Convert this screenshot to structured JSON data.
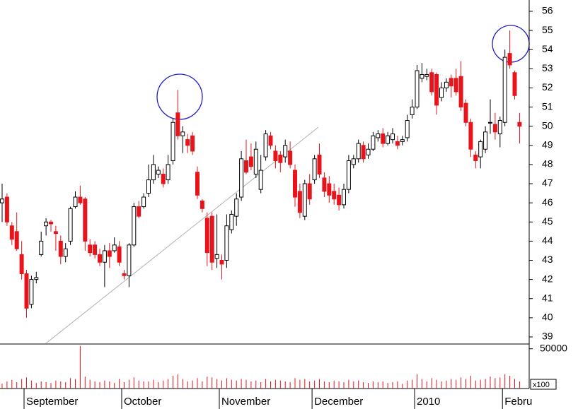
{
  "chart_data": {
    "type": "candlestick",
    "categories": [
      null,
      null,
      null,
      null,
      null,
      "September",
      null,
      null,
      null,
      null,
      null,
      null,
      null,
      null,
      null,
      null,
      null,
      null,
      null,
      null,
      null,
      null,
      null,
      null,
      null,
      "October",
      null,
      null,
      null,
      null,
      null,
      null,
      null,
      null,
      null,
      null,
      null,
      null,
      null,
      null,
      null,
      null,
      null,
      null,
      null,
      "November",
      null,
      null,
      null,
      null,
      null,
      null,
      null,
      null,
      null,
      null,
      null,
      null,
      null,
      null,
      null,
      null,
      null,
      null,
      "December",
      null,
      null,
      null,
      null,
      null,
      null,
      null,
      null,
      null,
      null,
      null,
      null,
      null,
      null,
      null,
      null,
      null,
      null,
      null,
      null,
      "2010",
      null,
      null,
      null,
      null,
      null,
      null,
      null,
      null,
      null,
      null,
      null,
      null,
      null,
      null,
      null,
      null,
      null,
      "Febru",
      null,
      null,
      null
    ],
    "open": [
      46,
      46.3,
      44.8,
      44.5,
      43.3,
      42.3,
      40.7,
      42,
      43.3,
      44.8,
      45,
      44.5,
      44,
      43.2,
      44,
      45.8,
      46.3,
      46.2,
      43.8,
      43.8,
      43.3,
      42.9,
      43.5,
      43.5,
      43.7,
      42.3,
      42.2,
      43.8,
      45.8,
      45.8,
      46.5,
      47.2,
      47.5,
      47.5,
      47.2,
      48.2,
      50.7,
      49.5,
      49.3,
      49.5,
      47.6,
      46.1,
      45.2,
      45.3,
      43.1,
      43,
      43,
      44.6,
      45.3,
      46.3,
      48.2,
      48.4,
      47.5,
      46.7,
      48.4,
      49.5,
      48.7,
      48.5,
      48.4,
      48.7,
      47.7,
      46.6,
      45.3,
      47,
      47.2,
      48.5,
      47.3,
      47,
      46.6,
      46.4,
      45.9,
      46.7,
      48,
      48.3,
      49,
      48.5,
      48.8,
      49.4,
      49.6,
      49.1,
      49.3,
      49.2,
      49.2,
      49.4,
      50.6,
      51,
      52.5,
      52.6,
      52.8,
      52.7,
      51.5,
      52,
      52.5,
      52.5,
      52.6,
      51.2,
      50.2,
      48.5,
      48.4,
      48.8,
      50.2,
      50.1,
      49.6,
      50.2,
      53.8,
      52.8,
      50.2
    ],
    "high": [
      47,
      46.5,
      45,
      45.5,
      44,
      42.5,
      42.2,
      42.4,
      44.5,
      45.2,
      45.1,
      44.8,
      44.3,
      43.9,
      45.8,
      46.6,
      46.9,
      46.3,
      44.1,
      44,
      43.6,
      43.8,
      43.9,
      44.2,
      44,
      42.5,
      43.9,
      46,
      46.1,
      46.5,
      48,
      48.5,
      47.9,
      47.8,
      48.5,
      50.4,
      51.9,
      50,
      49.6,
      49.7,
      47.9,
      46.2,
      45.5,
      45.5,
      45.4,
      43.3,
      45.4,
      45.6,
      46.5,
      48.7,
      49.3,
      49.1,
      49.2,
      48.5,
      49.8,
      49.7,
      49,
      48.7,
      49.3,
      49.2,
      48,
      47,
      47.2,
      47.5,
      48.5,
      49.1,
      47.6,
      47.4,
      47,
      46.8,
      47,
      48.5,
      48.5,
      49.3,
      49.2,
      49.1,
      49.7,
      49.8,
      49.9,
      49.7,
      49.9,
      49.5,
      49.5,
      50.6,
      51.4,
      53.2,
      53.3,
      53,
      53,
      52.8,
      52.3,
      52.5,
      52.7,
      53,
      53.4,
      51.4,
      50.4,
      48.7,
      49.3,
      50,
      51.4,
      50.7,
      50.5,
      54,
      55,
      52.9,
      50.7
    ],
    "low": [
      45,
      44.8,
      43.8,
      43.5,
      42,
      40,
      40.5,
      41.8,
      43.2,
      44.3,
      44.5,
      43.5,
      42.8,
      42.9,
      43.8,
      45.7,
      45.9,
      43.5,
      43.2,
      43.1,
      42.7,
      41.6,
      42.6,
      43.4,
      42.7,
      42,
      41.6,
      43.7,
      45.2,
      45.7,
      46.3,
      47,
      47.3,
      46.8,
      47,
      48,
      49.3,
      48.6,
      48.6,
      48.5,
      46.2,
      45.5,
      42.7,
      42.5,
      42.6,
      42,
      42.6,
      44.4,
      44.8,
      46.1,
      47.5,
      47.7,
      47.3,
      46.5,
      48.2,
      48.8,
      47.8,
      47.6,
      48.1,
      47.8,
      45.8,
      45.2,
      45.1,
      45.9,
      47,
      47.3,
      46.3,
      46,
      45.9,
      45.6,
      45.7,
      46.5,
      47.8,
      48.1,
      48.1,
      48.3,
      48.7,
      49.2,
      48.9,
      49,
      49.1,
      48.8,
      49,
      49.2,
      50.4,
      50.9,
      52.3,
      52.4,
      51.6,
      50.6,
      51.3,
      51.8,
      51.5,
      51.6,
      50.8,
      50,
      48.4,
      47.8,
      47.8,
      48.6,
      49.6,
      49.3,
      48.9,
      50,
      53,
      51.4,
      49.1
    ],
    "close": [
      46.2,
      45,
      44.1,
      43.6,
      42.3,
      40.5,
      42,
      42.1,
      44,
      45,
      44.9,
      44.4,
      43.2,
      43.6,
      45.7,
      46.3,
      46,
      44,
      43.4,
      43.3,
      42.9,
      43.5,
      43.2,
      43.8,
      42.9,
      42.2,
      43.8,
      45.8,
      45.3,
      46.3,
      47.2,
      48,
      47.7,
      47,
      48,
      50.2,
      49.5,
      49.7,
      49,
      48.7,
      46.4,
      45.7,
      43.4,
      42.9,
      43.3,
      42.8,
      44.8,
      45.4,
      46.2,
      48.3,
      47.6,
      47.9,
      48.8,
      47.7,
      49.6,
      49,
      48.2,
      48.1,
      49,
      48,
      46.3,
      45.5,
      47,
      46.2,
      48.3,
      47.5,
      46.6,
      46.4,
      46.2,
      45.9,
      46.7,
      48.2,
      48.3,
      49.1,
      48.3,
      48.8,
      49.5,
      49.6,
      49.1,
      49.5,
      49.6,
      49,
      49.3,
      50.3,
      51,
      52.9,
      52.7,
      52.7,
      51.8,
      51.1,
      52,
      52.3,
      52.1,
      51.8,
      51,
      50.2,
      48.8,
      48.2,
      49.2,
      49.7,
      50.2,
      49.7,
      50.3,
      53.6,
      53.2,
      51.6,
      50
    ],
    "up_color": "#000000",
    "down_color": "#e8141c",
    "ylim": [
      38.63,
      56.59
    ],
    "yticks": [
      39,
      40,
      41,
      42,
      43,
      44,
      45,
      46,
      47,
      48,
      49,
      50,
      51,
      52,
      53,
      54,
      55,
      56
    ],
    "volume": {
      "values": [
        6000,
        9000,
        11000,
        8000,
        12000,
        14000,
        10000,
        7000,
        9000,
        8000,
        7000,
        10000,
        9000,
        8000,
        13000,
        12000,
        53500,
        15000,
        11000,
        9000,
        8000,
        10000,
        9000,
        7000,
        12000,
        8000,
        11000,
        14000,
        10000,
        9000,
        9000,
        11000,
        8000,
        10000,
        12000,
        16000,
        18000,
        12000,
        9000,
        10000,
        13000,
        9000,
        15000,
        14000,
        12000,
        10000,
        13000,
        11000,
        10000,
        12000,
        11000,
        9000,
        10000,
        8000,
        12000,
        9000,
        11000,
        10000,
        9000,
        8000,
        13000,
        11000,
        12000,
        9000,
        10000,
        12000,
        9000,
        8000,
        10000,
        9000,
        8000,
        11000,
        9000,
        10000,
        8000,
        7000,
        9000,
        8000,
        9000,
        7000,
        8000,
        9000,
        6000,
        10000,
        11000,
        18000,
        12000,
        9000,
        13000,
        11000,
        9000,
        10000,
        12000,
        11000,
        14000,
        12000,
        16000,
        10000,
        11000,
        12000,
        15000,
        13000,
        14000,
        18000,
        16000,
        12000,
        9000
      ],
      "color": "#e8141c",
      "ylim": [
        0,
        56000
      ],
      "yticks": [
        50000
      ],
      "unit_label": "x100"
    }
  }
}
